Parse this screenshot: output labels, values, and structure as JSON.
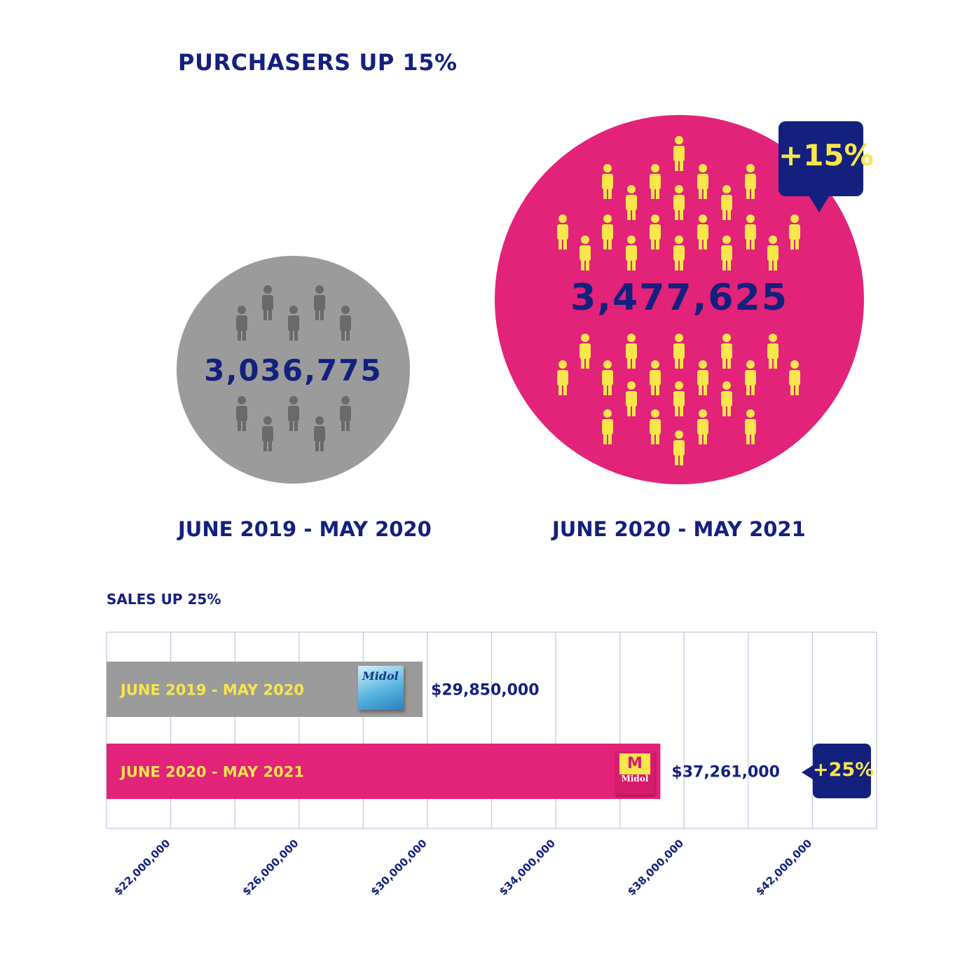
{
  "purchasers": {
    "title": "PURCHASERS UP 15%",
    "period_a": {
      "label": "JUNE 2019 - MAY 2020",
      "count_text": "3,036,775",
      "count": 3036775
    },
    "period_b": {
      "label": "JUNE 2020 - MAY 2021",
      "count_text": "3,477,625",
      "count": 3477625
    },
    "change_badge": "+15%"
  },
  "sales": {
    "title": "SALES UP 25%",
    "change_badge": "+25%",
    "product_brand_a": "Midol",
    "product_brand_b": "Midol"
  },
  "colors": {
    "navy": "#13207e",
    "pink": "#e3227a",
    "gray": "#9b9b9b",
    "yellow": "#f8e64b",
    "dark_gray_person": "#6a6a6a",
    "grid": "#c3c6e0"
  },
  "chart_data": [
    {
      "type": "bar",
      "title": "SALES UP 25%",
      "orientation": "horizontal",
      "categories": [
        "JUNE 2019 - MAY 2020",
        "JUNE 2020 - MAY 2021"
      ],
      "values": [
        29850000,
        37261000
      ],
      "value_labels": [
        "$29,850,000",
        "$37,261,000"
      ],
      "bar_colors": [
        "#9b9b9b",
        "#e3227a"
      ],
      "xlim": [
        20000000,
        44000000
      ],
      "xticks": [
        22000000,
        26000000,
        30000000,
        34000000,
        38000000,
        42000000
      ],
      "xtick_labels": [
        "$22,000,000",
        "$26,000,000",
        "$30,000,000",
        "$34,000,000",
        "$38,000,000",
        "$42,000,000"
      ],
      "grid": true
    }
  ]
}
